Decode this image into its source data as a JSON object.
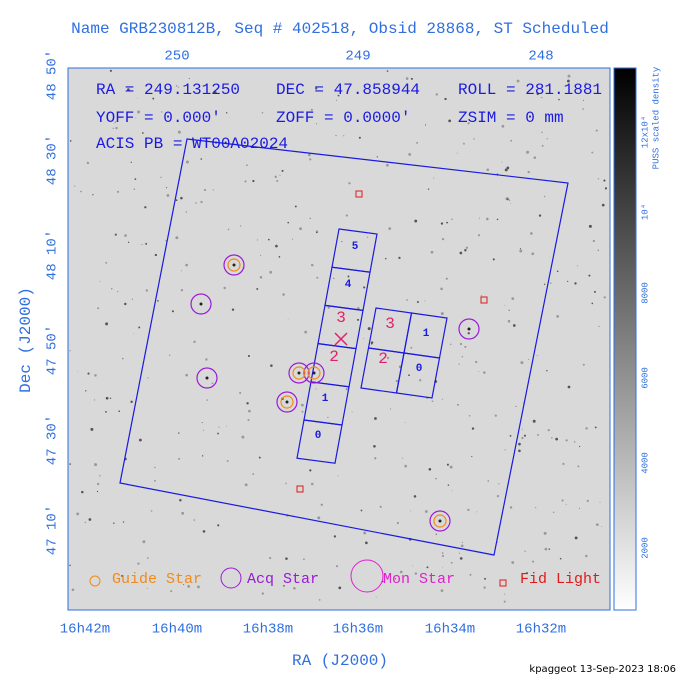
{
  "title": "Name GRB230812B, Seq # 402518, Obsid 28868, ST Scheduled",
  "info": [
    "RA = 249.131250",
    "DEC = 47.858944",
    "ROLL = 281.1881",
    "YOFF =   0.000'",
    "ZOFF =  0.0000'",
    "ZSIM = 0 mm",
    "ACIS PB = WT00A02024"
  ],
  "top_ticks": [
    "250",
    "249",
    "248"
  ],
  "bottom_ticks": [
    "16h42m",
    "16h40m",
    "16h38m",
    "16h36m",
    "16h34m",
    "16h32m"
  ],
  "left_ticks": [
    "48 50'",
    "48 30'",
    "48 10'",
    "47 50'",
    "47 30'",
    "47 10'"
  ],
  "x_axis_label": "RA (J2000)",
  "y_axis_label": "Dec (J2000)",
  "colorbar": {
    "ticks": [
      "2000",
      "4000",
      "6000",
      "8000",
      "10⁴",
      "12x10⁴"
    ],
    "label": "PUSS scaled density"
  },
  "chips": {
    "s_array": [
      "5",
      "4",
      "3",
      "2",
      "1",
      "0"
    ],
    "i_array_top": [
      "3",
      "1"
    ],
    "i_array_bottom": [
      "2",
      "0"
    ],
    "highlight": [
      "3",
      "2"
    ]
  },
  "legend": [
    "Guide Star",
    "Acq Star",
    "Mon Star",
    "Fid Light"
  ],
  "footer": "kpaggeot 13-Sep-2023 18:06"
}
